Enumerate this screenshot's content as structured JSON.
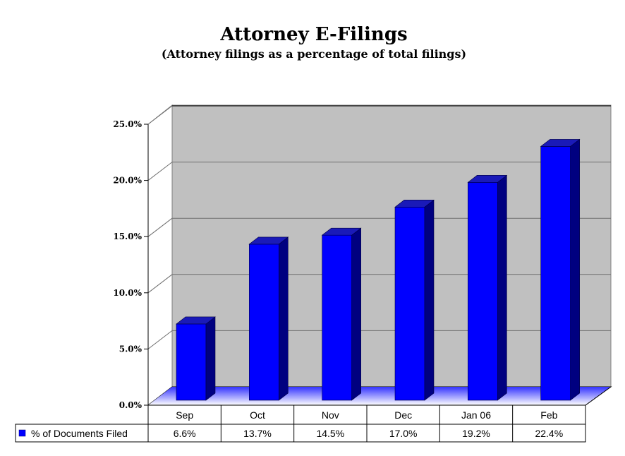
{
  "chart_data": {
    "type": "bar",
    "title": "Attorney E-Filings",
    "subtitle": "(Attorney filings as a percentage of total filings)",
    "categories": [
      "Sep",
      "Oct",
      "Nov",
      "Dec",
      "Jan 06",
      "Feb"
    ],
    "series": [
      {
        "name": "% of Documents Filed",
        "values": [
          6.6,
          13.7,
          14.5,
          17.0,
          19.2,
          22.4
        ],
        "labels": [
          "6.6%",
          "13.7%",
          "14.5%",
          "17.0%",
          "19.2%",
          "22.4%"
        ],
        "color": "#0000ff"
      }
    ],
    "ylim": [
      0,
      25
    ],
    "yticks": [
      0,
      5,
      10,
      15,
      20,
      25
    ],
    "ytick_labels": [
      "0.0%",
      "5.0%",
      "10.0%",
      "15.0%",
      "20.0%",
      "25.0%"
    ],
    "grid": true,
    "legend": "data-table-below",
    "style": "3d",
    "colors": {
      "wall": "#c0c0c0",
      "bar_front": "#0000ff",
      "bar_side": "#000080",
      "bar_top": "#1a1ab8"
    }
  }
}
